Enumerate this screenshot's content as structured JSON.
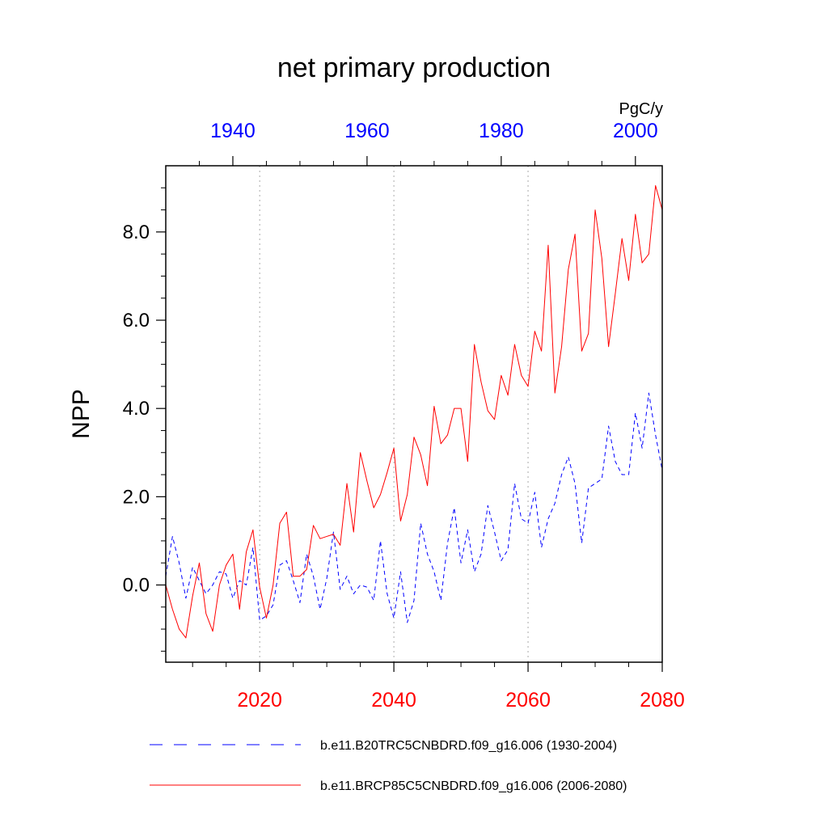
{
  "chart_data": {
    "type": "line",
    "title": "net primary production",
    "ylabel": "NPP",
    "units": "PgC/y",
    "ylim": [
      -1.75,
      9.5
    ],
    "yticks": [
      0,
      2,
      4,
      6,
      8
    ],
    "ytick_labels": [
      "0.0",
      "2.0",
      "4.0",
      "6.0",
      "8.0"
    ],
    "top_axis": {
      "range": [
        1930,
        2004
      ],
      "ticks": [
        1940,
        1960,
        1980,
        2000
      ],
      "color": "#0000ff"
    },
    "bottom_axis": {
      "range": [
        2006,
        2080
      ],
      "ticks": [
        2020,
        2040,
        2060,
        2080
      ],
      "color": "#ff0000"
    },
    "grid_x": [
      2020,
      2040,
      2060
    ],
    "series": [
      {
        "name": "b.e11.B20TRC5CNBDRD.f09_g16.006 (1930-2004)",
        "axis": "top",
        "color": "#0000ff",
        "dash": "dashed",
        "x": [
          1930,
          1931,
          1932,
          1933,
          1934,
          1935,
          1936,
          1937,
          1938,
          1939,
          1940,
          1941,
          1942,
          1943,
          1944,
          1945,
          1946,
          1947,
          1948,
          1949,
          1950,
          1951,
          1952,
          1953,
          1954,
          1955,
          1956,
          1957,
          1958,
          1959,
          1960,
          1961,
          1962,
          1963,
          1964,
          1965,
          1966,
          1967,
          1968,
          1969,
          1970,
          1971,
          1972,
          1973,
          1974,
          1975,
          1976,
          1977,
          1978,
          1979,
          1980,
          1981,
          1982,
          1983,
          1984,
          1985,
          1986,
          1987,
          1988,
          1989,
          1990,
          1991,
          1992,
          1993,
          1994,
          1995,
          1996,
          1997,
          1998,
          1999,
          2000,
          2001,
          2002,
          2003,
          2004
        ],
        "values": [
          0.2,
          1.1,
          0.5,
          -0.3,
          0.4,
          0.1,
          -0.2,
          0.0,
          0.3,
          0.25,
          -0.3,
          0.1,
          0.0,
          0.85,
          -0.8,
          -0.7,
          -0.45,
          0.45,
          0.55,
          0.1,
          -0.4,
          0.7,
          0.2,
          -0.55,
          0.15,
          1.2,
          -0.1,
          0.2,
          -0.2,
          0.0,
          -0.05,
          -0.35,
          1.0,
          -0.2,
          -0.75,
          0.3,
          -0.85,
          -0.35,
          1.4,
          0.7,
          0.3,
          -0.35,
          0.95,
          1.75,
          0.5,
          1.25,
          0.3,
          0.7,
          1.8,
          1.2,
          0.55,
          0.8,
          2.3,
          1.5,
          1.4,
          2.1,
          0.85,
          1.5,
          1.85,
          2.5,
          2.9,
          2.3,
          0.95,
          2.2,
          2.3,
          2.4,
          3.6,
          2.8,
          2.5,
          2.5,
          3.9,
          3.1,
          4.35,
          3.4,
          2.6
        ]
      },
      {
        "name": "b.e11.BRCP85C5CNBDRD.f09_g16.006 (2006-2080)",
        "axis": "bottom",
        "color": "#ff0000",
        "dash": "solid",
        "x": [
          2006,
          2007,
          2008,
          2009,
          2010,
          2011,
          2012,
          2013,
          2014,
          2015,
          2016,
          2017,
          2018,
          2019,
          2020,
          2021,
          2022,
          2023,
          2024,
          2025,
          2026,
          2027,
          2028,
          2029,
          2030,
          2031,
          2032,
          2033,
          2034,
          2035,
          2036,
          2037,
          2038,
          2039,
          2040,
          2041,
          2042,
          2043,
          2044,
          2045,
          2046,
          2047,
          2048,
          2049,
          2050,
          2051,
          2052,
          2053,
          2054,
          2055,
          2056,
          2057,
          2058,
          2059,
          2060,
          2061,
          2062,
          2063,
          2064,
          2065,
          2066,
          2067,
          2068,
          2069,
          2070,
          2071,
          2072,
          2073,
          2074,
          2075,
          2076,
          2077,
          2078,
          2079,
          2080
        ],
        "values": [
          0.0,
          -0.55,
          -1.0,
          -1.2,
          -0.25,
          0.5,
          -0.65,
          -1.05,
          0.0,
          0.45,
          0.7,
          -0.55,
          0.75,
          1.25,
          -0.05,
          -0.75,
          0.0,
          1.4,
          1.65,
          0.2,
          0.2,
          0.35,
          1.35,
          1.05,
          1.1,
          1.15,
          0.9,
          2.3,
          1.2,
          3.0,
          2.35,
          1.75,
          2.05,
          2.55,
          3.1,
          1.45,
          2.05,
          3.35,
          2.95,
          2.25,
          4.05,
          3.2,
          3.4,
          4.0,
          4.0,
          2.8,
          5.45,
          4.6,
          3.95,
          3.75,
          4.75,
          4.3,
          5.45,
          4.75,
          4.5,
          5.75,
          5.3,
          7.7,
          4.35,
          5.4,
          7.15,
          7.95,
          5.3,
          5.7,
          8.5,
          7.4,
          5.4,
          6.6,
          7.85,
          6.9,
          8.4,
          7.3,
          7.5,
          9.05,
          8.5
        ]
      }
    ]
  }
}
